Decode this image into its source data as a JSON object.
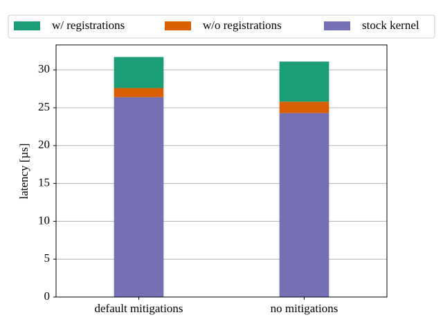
{
  "chart_data": {
    "type": "stacked-bar",
    "categories": [
      "default mitigations",
      "no mitigations"
    ],
    "series": [
      {
        "name": "w/ registrations",
        "color": "#1b9e77",
        "values": [
          4.1,
          5.3
        ]
      },
      {
        "name": "w/o registrations",
        "color": "#d95f02",
        "values": [
          1.2,
          1.5
        ]
      },
      {
        "name": "stock kernel",
        "color": "#7570b3",
        "values": [
          26.4,
          24.3
        ]
      }
    ],
    "y_label": "latency [µs]",
    "ylim": [
      0,
      33.3
    ],
    "yticks": [
      0,
      5,
      10,
      15,
      20,
      25,
      30
    ],
    "grid": true,
    "legend": "top"
  }
}
